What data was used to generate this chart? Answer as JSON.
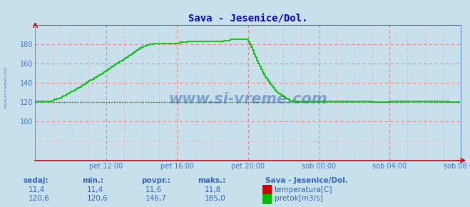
{
  "title": "Sava - Jesenice/Dol.",
  "bg_color": "#c8e0ec",
  "plot_bg_color": "#c8e0ec",
  "grid_color_major": "#e88888",
  "grid_color_minor": "#e8b0b0",
  "xlabel_ticks": [
    "pet 12:00",
    "pet 16:00",
    "pet 20:00",
    "sob 00:00",
    "sob 04:00",
    "sob 08:00"
  ],
  "yticks": [
    100,
    120,
    140,
    160,
    180
  ],
  "ylim": [
    60,
    200
  ],
  "xlim": [
    0,
    288
  ],
  "flow_color": "#00bb00",
  "temp_color": "#cc0000",
  "avg_color": "#009900",
  "title_color": "#0000cc",
  "label_color": "#4477cc",
  "footer_label_color": "#3366bb",
  "watermark_color": "#2255aa",
  "sedaj_label": "sedaj:",
  "min_label": "min.:",
  "povpr_label": "povpr.:",
  "maks_label": "maks.:",
  "station_label": "Sava - Jesenice/Dol.",
  "temp_legend": "temperatura[C]",
  "flow_legend": "pretok[m3/s]",
  "temp_sedaj": "11,4",
  "temp_min": "11,4",
  "temp_povpr": "11,6",
  "temp_maks": "11,8",
  "flow_sedaj": "120,6",
  "flow_min": "120,6",
  "flow_povpr": "146,7",
  "flow_maks": "185,0",
  "avg_flow": 120.6,
  "n_points": 288,
  "tick_positions": [
    48,
    96,
    144,
    192,
    240,
    288
  ],
  "flow_data": [
    121,
    121,
    121,
    121,
    121,
    121,
    121,
    121,
    121,
    121,
    121,
    122,
    122,
    123,
    123,
    124,
    124,
    125,
    126,
    127,
    127,
    128,
    129,
    130,
    131,
    131,
    132,
    133,
    134,
    135,
    136,
    137,
    138,
    139,
    140,
    141,
    142,
    143,
    143,
    144,
    145,
    146,
    147,
    148,
    149,
    150,
    151,
    152,
    153,
    154,
    155,
    156,
    157,
    158,
    159,
    160,
    161,
    162,
    163,
    164,
    165,
    166,
    167,
    168,
    169,
    170,
    171,
    172,
    173,
    174,
    175,
    176,
    177,
    178,
    178,
    179,
    179,
    180,
    180,
    180,
    181,
    181,
    181,
    181,
    181,
    181,
    181,
    181,
    181,
    181,
    181,
    181,
    181,
    181,
    181,
    181,
    181,
    181,
    182,
    182,
    182,
    182,
    182,
    183,
    183,
    183,
    183,
    183,
    183,
    183,
    183,
    183,
    183,
    183,
    183,
    183,
    183,
    183,
    183,
    183,
    183,
    183,
    183,
    183,
    183,
    183,
    183,
    183,
    184,
    184,
    184,
    184,
    185,
    185,
    185,
    185,
    185,
    185,
    185,
    185,
    185,
    185,
    185,
    185,
    183,
    180,
    177,
    174,
    170,
    167,
    163,
    160,
    157,
    154,
    151,
    148,
    145,
    143,
    141,
    139,
    137,
    135,
    133,
    131,
    130,
    129,
    128,
    127,
    126,
    125,
    124,
    123,
    122,
    122,
    121,
    121,
    121,
    121,
    121,
    121,
    121,
    121,
    121,
    121,
    121,
    121,
    121,
    121,
    121,
    121,
    121,
    121,
    121,
    121,
    121,
    121,
    121,
    121,
    121,
    121,
    121,
    121,
    121,
    121,
    121,
    121,
    121,
    121,
    121,
    121,
    121,
    121,
    121,
    121,
    121,
    121,
    121,
    121,
    121,
    121,
    121,
    121,
    121,
    121,
    121,
    121,
    121,
    121,
    120,
    120,
    120,
    120,
    120,
    120,
    120,
    120,
    120,
    120,
    120,
    120,
    121,
    121,
    121,
    121,
    121,
    121,
    121,
    121,
    121,
    121,
    121,
    121,
    121,
    121,
    121,
    121,
    121,
    121,
    121,
    121,
    121,
    121,
    121,
    121,
    121,
    121,
    121,
    121,
    121,
    121,
    121,
    121,
    121,
    121,
    121,
    121,
    121,
    121,
    121,
    121,
    120,
    120,
    120,
    120,
    120,
    120,
    120,
    120
  ]
}
